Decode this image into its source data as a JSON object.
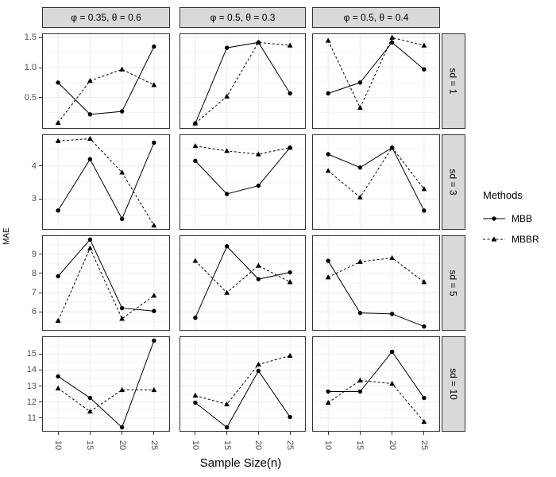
{
  "chart_data": {
    "type": "line",
    "title": "",
    "xlabel": "Sample Size(n)",
    "ylabel": "MAE",
    "x": [
      10,
      15,
      20,
      25
    ],
    "x_tick_labels": [
      "10",
      "15",
      "20",
      "25"
    ],
    "grid": true,
    "legend_position": "right",
    "colors": {
      "strip_fill": "#d9d9d9",
      "panel_border": "#333333",
      "grid_major": "#ebebeb",
      "grid_minor": "#f5f5f5",
      "series": "#000000",
      "tick_text": "#4d4d4d"
    },
    "facet": {
      "col_labels": [
        "φ = 0.35, θ = 0.6",
        "φ = 0.5, θ = 0.3",
        "φ = 0.5, θ = 0.4"
      ],
      "row_labels": [
        "sd = 1",
        "sd = 3",
        "sd = 5",
        "sd = 10"
      ]
    },
    "legend": {
      "title": "Methods",
      "entries": [
        {
          "name": "MBB",
          "marker": "circle",
          "linetype": "solid"
        },
        {
          "name": "MBBR",
          "marker": "triangle",
          "linetype": "dashed"
        }
      ]
    },
    "rows": [
      {
        "label": "sd = 1",
        "ylim": [
          -0.02,
          1.57
        ],
        "yticks": [
          0.5,
          1.0,
          1.5
        ],
        "ytick_labels": [
          "0.5",
          "1.0",
          "1.5"
        ],
        "panels": [
          {
            "MBB": [
              0.75,
              0.22,
              0.27,
              1.35
            ],
            "MBBR": [
              0.08,
              0.78,
              0.97,
              0.71
            ]
          },
          {
            "MBB": [
              0.07,
              1.33,
              1.42,
              0.57
            ],
            "MBBR": [
              0.07,
              0.52,
              1.42,
              1.37
            ]
          },
          {
            "MBB": [
              0.57,
              0.75,
              1.42,
              0.97
            ],
            "MBBR": [
              1.45,
              0.33,
              1.5,
              1.37
            ]
          }
        ]
      },
      {
        "label": "sd = 3",
        "ylim": [
          2.07,
          4.95
        ],
        "yticks": [
          3,
          4
        ],
        "ytick_labels": [
          "3",
          "4"
        ],
        "panels": [
          {
            "MBB": [
              2.65,
              4.2,
              2.4,
              4.7
            ],
            "MBBR": [
              4.75,
              4.82,
              3.8,
              2.2
            ]
          },
          {
            "MBB": [
              4.15,
              3.15,
              3.4,
              4.55
            ],
            "MBBR": [
              4.6,
              4.45,
              4.35,
              4.55
            ]
          },
          {
            "MBB": [
              4.35,
              3.95,
              4.55,
              2.65
            ],
            "MBBR": [
              3.85,
              3.05,
              4.55,
              3.3
            ]
          }
        ]
      },
      {
        "label": "sd = 5",
        "ylim": [
          5.03,
          9.97
        ],
        "yticks": [
          6,
          7,
          8,
          9
        ],
        "ytick_labels": [
          "6",
          "7",
          "8",
          "9"
        ],
        "panels": [
          {
            "MBB": [
              7.85,
              9.75,
              6.2,
              6.05
            ],
            "MBBR": [
              5.55,
              9.3,
              5.65,
              6.85
            ]
          },
          {
            "MBB": [
              5.7,
              9.4,
              7.7,
              8.05
            ],
            "MBBR": [
              8.65,
              7.0,
              8.4,
              7.55
            ]
          },
          {
            "MBB": [
              8.65,
              5.95,
              5.9,
              5.25
            ],
            "MBBR": [
              7.8,
              8.6,
              8.8,
              7.55
            ]
          }
        ]
      },
      {
        "label": "sd = 10",
        "ylim": [
          10.13,
          16.12
        ],
        "yticks": [
          11,
          12,
          13,
          14,
          15
        ],
        "ytick_labels": [
          "11",
          "12",
          "13",
          "14",
          "15"
        ],
        "panels": [
          {
            "MBB": [
              13.6,
              12.25,
              10.4,
              15.85
            ],
            "MBBR": [
              12.85,
              11.4,
              12.75,
              12.75
            ]
          },
          {
            "MBB": [
              11.95,
              10.4,
              13.95,
              11.05
            ],
            "MBBR": [
              12.4,
              11.85,
              14.35,
              14.9
            ]
          },
          {
            "MBB": [
              12.65,
              12.65,
              15.15,
              12.25
            ],
            "MBBR": [
              11.95,
              13.35,
              13.15,
              10.75
            ]
          }
        ]
      }
    ]
  }
}
